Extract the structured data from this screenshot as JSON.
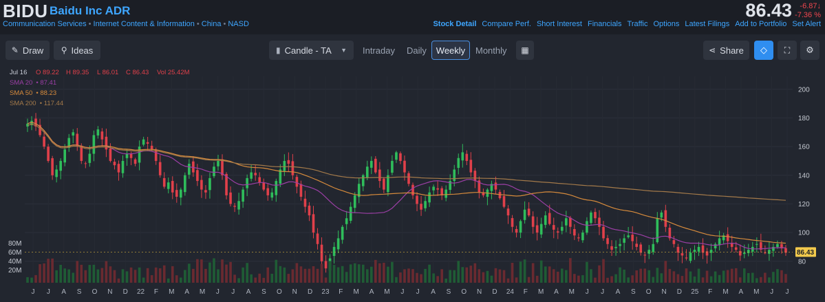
{
  "header": {
    "ticker": "BIDU",
    "company": "Baidu Inc ADR",
    "breadcrumbs": [
      "Communication Services",
      "Internet Content & Information",
      "China",
      "NASD"
    ],
    "price": "86.43",
    "change": "-6.87",
    "change_pct": "-7.36 %",
    "nav": [
      "Stock Detail",
      "Compare Perf.",
      "Short Interest",
      "Financials",
      "Traffic",
      "Options",
      "Latest Filings",
      "Add to Portfolio",
      "Set Alert"
    ]
  },
  "toolbar": {
    "draw_label": "Draw",
    "ideas_label": "Ideas",
    "chart_type_label": "Candle - TA",
    "timeframes": [
      "Intraday",
      "Daily",
      "Weekly",
      "Monthly"
    ],
    "selected_timeframe": "Weekly",
    "share_label": "Share"
  },
  "colors": {
    "up": "#2fbd5b",
    "down": "#e0404a",
    "sma20": "#9c3fa6",
    "sma50": "#d78b3c",
    "sma200": "#a47a4a",
    "accent": "#3ea6ff"
  },
  "chart_data": {
    "type": "candlestick",
    "ohlc_readout": {
      "date": "Jul 16",
      "open": "O 89.22",
      "high": "H 89.35",
      "low": "L 86.01",
      "close": "C 86.43",
      "volume": "Vol 25.42M"
    },
    "indicators": [
      {
        "name": "SMA 20",
        "value": "87.41"
      },
      {
        "name": "SMA 50",
        "value": "88.23"
      },
      {
        "name": "SMA 200",
        "value": "117.44"
      }
    ],
    "last_price_label": "86.43",
    "y_ticks": [
      200,
      180,
      160,
      140,
      120,
      100,
      80
    ],
    "ylim": [
      65,
      209
    ],
    "volume_ticks": [
      "80M",
      "60M",
      "40M",
      "20M"
    ],
    "x_ticks": [
      "J",
      "J",
      "A",
      "S",
      "O",
      "N",
      "D",
      "22",
      "F",
      "M",
      "A",
      "M",
      "J",
      "J",
      "A",
      "S",
      "O",
      "N",
      "D",
      "23",
      "F",
      "M",
      "A",
      "M",
      "J",
      "J",
      "A",
      "S",
      "O",
      "N",
      "D",
      "24",
      "F",
      "M",
      "A",
      "M",
      "J",
      "J",
      "A",
      "S",
      "O",
      "N",
      "D",
      "25",
      "F",
      "M",
      "A",
      "M",
      "J",
      "J"
    ],
    "weekly_close": [
      176,
      178,
      174,
      168,
      160,
      150,
      140,
      144,
      150,
      158,
      166,
      170,
      160,
      150,
      148,
      155,
      168,
      172,
      165,
      158,
      150,
      147,
      142,
      150,
      155,
      152,
      148,
      160,
      165,
      162,
      158,
      150,
      140,
      132,
      135,
      128,
      125,
      130,
      140,
      148,
      142,
      136,
      130,
      128,
      138,
      146,
      150,
      140,
      126,
      120,
      118,
      122,
      130,
      138,
      142,
      140,
      135,
      130,
      126,
      128,
      136,
      144,
      150,
      148,
      140,
      132,
      125,
      118,
      112,
      100,
      92,
      80,
      75,
      82,
      90,
      96,
      104,
      110,
      118,
      126,
      134,
      140,
      146,
      150,
      142,
      136,
      130,
      140,
      150,
      156,
      150,
      142,
      134,
      126,
      120,
      116,
      122,
      128,
      132,
      130,
      126,
      130,
      136,
      144,
      152,
      156,
      150,
      142,
      136,
      128,
      126,
      130,
      134,
      130,
      124,
      118,
      112,
      104,
      100,
      108,
      116,
      112,
      104,
      100,
      106,
      112,
      106,
      102,
      100,
      104,
      110,
      104,
      98,
      96,
      100,
      108,
      114,
      110,
      104,
      96,
      92,
      88,
      90,
      92,
      96,
      98,
      94,
      90,
      86,
      84,
      88,
      92,
      110,
      114,
      104,
      96,
      92,
      86,
      84,
      82,
      86,
      88,
      90,
      86,
      84,
      88,
      92,
      96,
      98,
      94,
      90,
      88,
      84,
      86,
      88,
      90,
      92,
      88,
      86,
      88,
      90,
      92,
      89,
      86
    ]
  }
}
